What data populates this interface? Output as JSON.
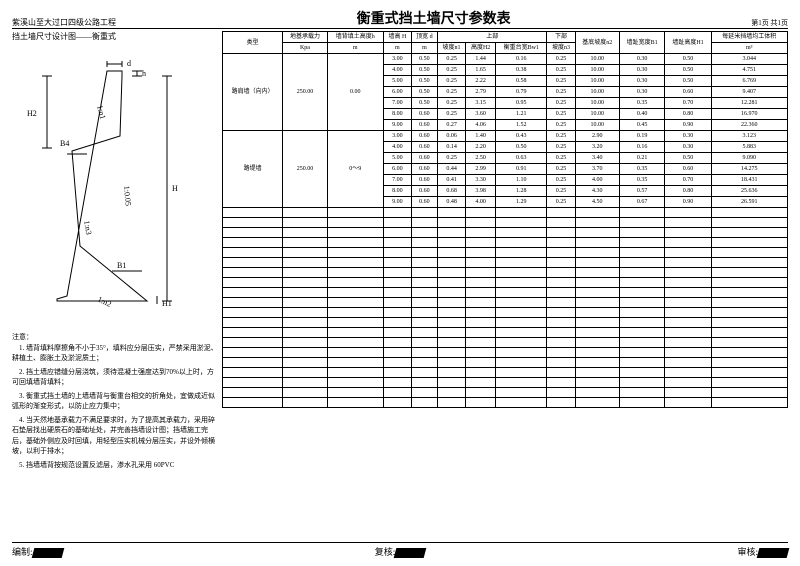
{
  "title": "衡重式挡土墙尺寸参数表",
  "subtitle": "紫溪山至大过口四级公路工程",
  "page_info": "第1页  共1页",
  "diagram_title": "挡土墙尺寸设计图——衡重式",
  "diagram": {
    "labels": {
      "h": "h",
      "d": "d",
      "H2": "H2",
      "B4": "B4",
      "slope1": "1:n1",
      "slope2": "1:0.05",
      "H": "H",
      "slope3": "1:n3",
      "B1": "B1",
      "slope4": "1:n2",
      "H1": "H1"
    }
  },
  "notes_title": "注意：",
  "notes": [
    "1. 墙背填料摩擦角不小于35°，填料应分层压实，严禁采用淤泥、耕植土、膨胀土及淤泥质土；",
    "2. 挡土墙应错缝分层浇筑，须待混凝土强度达到70%以上时，方可回填墙背填料；",
    "3. 衡重式挡土墙的上墙墙背与衡重台相交的折角处，宜做成近似弧形的渐变形式，以防止应力集中；",
    "4. 当天然地基承载力不满足要求时，为了提高其承载力，采用碎石垫层找出硬质石的基础址处，并完善挡墙设计图；挡墙施工完后，基础外侧应及时回填，用轻型压实机械分层压实，并设外倾横坡，以利于排水；",
    "5. 挡墙墙背按规范设置反滤层，渗水孔采用 60PVC"
  ],
  "table": {
    "headers": {
      "r1": [
        "类型",
        "地基承载力",
        "墙背填土高度h",
        "墙高 H",
        "顶宽 d",
        "上部",
        "下部",
        "基底坡度n2",
        "墙趾宽度B1",
        "墙趾高度H1",
        "每延米挡墙均工体积"
      ],
      "r2": [
        "Kpa",
        "m",
        "m",
        "m",
        "坡度n1",
        "高度H2",
        "衡重台宽Bw1",
        "坡度n3",
        "m³"
      ]
    },
    "rows": [
      {
        "type": "路肩墙（向内）",
        "bearing": "250.00",
        "fill": "0.00",
        "data": [
          [
            "3.00",
            "0.50",
            "0.25",
            "1.44",
            "0.16",
            "0.25",
            "10.00",
            "0.30",
            "0.50",
            "3.044"
          ],
          [
            "4.00",
            "0.50",
            "0.25",
            "1.65",
            "0.38",
            "0.25",
            "10.00",
            "0.30",
            "0.50",
            "4.751"
          ],
          [
            "5.00",
            "0.50",
            "0.25",
            "2.22",
            "0.58",
            "0.25",
            "10.00",
            "0.30",
            "0.50",
            "6.769"
          ],
          [
            "6.00",
            "0.50",
            "0.25",
            "2.79",
            "0.79",
            "0.25",
            "10.00",
            "0.30",
            "0.60",
            "9.407"
          ],
          [
            "7.00",
            "0.50",
            "0.25",
            "3.15",
            "0.95",
            "0.25",
            "10.00",
            "0.35",
            "0.70",
            "12.281"
          ],
          [
            "8.00",
            "0.60",
            "0.25",
            "3.60",
            "1.21",
            "0.25",
            "10.00",
            "0.40",
            "0.80",
            "16.970"
          ],
          [
            "9.00",
            "0.60",
            "0.27",
            "4.06",
            "1.52",
            "0.25",
            "10.00",
            "0.45",
            "0.90",
            "22.360"
          ]
        ]
      },
      {
        "type": "路堤墙",
        "bearing": "250.00",
        "fill": "0～9",
        "data": [
          [
            "3.00",
            "0.60",
            "0.06",
            "1.40",
            "0.43",
            "0.25",
            "2.90",
            "0.19",
            "0.30",
            "3.123"
          ],
          [
            "4.00",
            "0.60",
            "0.14",
            "2.20",
            "0.50",
            "0.25",
            "3.20",
            "0.16",
            "0.30",
            "5.883"
          ],
          [
            "5.00",
            "0.60",
            "0.25",
            "2.50",
            "0.63",
            "0.25",
            "3.40",
            "0.21",
            "0.50",
            "9.090"
          ],
          [
            "6.00",
            "0.60",
            "0.44",
            "2.99",
            "0.91",
            "0.25",
            "3.70",
            "0.35",
            "0.60",
            "14.275"
          ],
          [
            "7.00",
            "0.60",
            "0.41",
            "3.30",
            "1.10",
            "0.25",
            "4.00",
            "0.35",
            "0.70",
            "18.431"
          ],
          [
            "8.00",
            "0.60",
            "0.68",
            "3.98",
            "1.28",
            "0.25",
            "4.30",
            "0.57",
            "0.80",
            "25.636"
          ],
          [
            "9.00",
            "0.60",
            "0.48",
            "4.00",
            "1.29",
            "0.25",
            "4.50",
            "0.67",
            "0.90",
            "26.591"
          ]
        ]
      }
    ],
    "empty_rows": 20
  },
  "footer": {
    "prepare": "编制:",
    "review": "复核:",
    "approve": "审核:"
  }
}
